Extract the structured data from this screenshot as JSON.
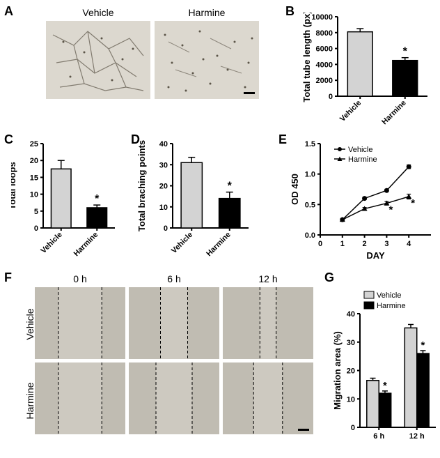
{
  "panels": {
    "A": {
      "label": "A",
      "img1_title": "Vehicle",
      "img2_title": "Harmine"
    },
    "B": {
      "label": "B",
      "type": "bar",
      "ylabel": "Total tube length (px)",
      "categories": [
        "Vehicle",
        "Harmine"
      ],
      "values": [
        8100,
        4500
      ],
      "errors": [
        400,
        350
      ],
      "colors": [
        "#d3d3d3",
        "#000000"
      ],
      "ylim": [
        0,
        10000
      ],
      "ytick_step": 2000,
      "sig_marker": "*",
      "sig_index": 1
    },
    "C": {
      "label": "C",
      "type": "bar",
      "ylabel": "Total loops",
      "categories": [
        "Vehicle",
        "Harmine"
      ],
      "values": [
        17.5,
        6
      ],
      "errors": [
        2.5,
        0.8
      ],
      "colors": [
        "#d3d3d3",
        "#000000"
      ],
      "ylim": [
        0,
        25
      ],
      "yticks": [
        0,
        5,
        10,
        15,
        20,
        25
      ],
      "sig_marker": "*",
      "sig_index": 1
    },
    "D": {
      "label": "D",
      "type": "bar",
      "ylabel": "Total braching points",
      "categories": [
        "Vehicle",
        "Harmine"
      ],
      "values": [
        31,
        14
      ],
      "errors": [
        2.5,
        3
      ],
      "colors": [
        "#d3d3d3",
        "#000000"
      ],
      "ylim": [
        0,
        40
      ],
      "yticks": [
        0,
        10,
        20,
        30,
        40
      ],
      "sig_marker": "*",
      "sig_index": 1
    },
    "E": {
      "label": "E",
      "type": "line",
      "ylabel": "OD 450",
      "xlabel": "DAY",
      "x": [
        1,
        2,
        3,
        4
      ],
      "series": [
        {
          "name": "Vehicle",
          "values": [
            0.25,
            0.6,
            0.73,
            1.12
          ],
          "errors": [
            0.02,
            0.02,
            0.02,
            0.03
          ],
          "marker": "circle",
          "color": "#000000"
        },
        {
          "name": "Harmine",
          "values": [
            0.25,
            0.43,
            0.52,
            0.63
          ],
          "errors": [
            0.02,
            0.02,
            0.03,
            0.04
          ],
          "marker": "triangle",
          "color": "#000000"
        }
      ],
      "ylim": [
        0.0,
        1.5
      ],
      "yticks": [
        0.0,
        0.5,
        1.0,
        1.5
      ],
      "xlim": [
        0,
        5
      ],
      "xticks": [
        0,
        1,
        2,
        3,
        4
      ],
      "sig_marker": "*",
      "sig_x": [
        3,
        4
      ]
    },
    "F": {
      "label": "F",
      "col_titles": [
        "0 h",
        "6 h",
        "12 h"
      ],
      "row_titles": [
        "Vehicle",
        "Harmine"
      ]
    },
    "G": {
      "label": "G",
      "type": "grouped-bar",
      "ylabel": "Migration area (%)",
      "groups": [
        "6 h",
        "12 h"
      ],
      "series": [
        {
          "name": "Vehicle",
          "color": "#d3d3d3",
          "values": [
            16.5,
            35
          ],
          "errors": [
            0.8,
            1.2
          ]
        },
        {
          "name": "Harmine",
          "color": "#000000",
          "values": [
            12,
            26
          ],
          "errors": [
            0.8,
            1.0
          ]
        }
      ],
      "ylim": [
        0,
        40
      ],
      "yticks": [
        0,
        10,
        20,
        30,
        40
      ],
      "sig_marker": "*"
    }
  },
  "styling": {
    "axis_stroke": "#000000",
    "axis_width": 2,
    "label_fontsize": 13,
    "tick_fontsize": 11,
    "panel_label_fontsize": 18,
    "background": "#ffffff",
    "micro_bg": "#d8d4cb",
    "migration_bg": "#c9c5bc"
  }
}
